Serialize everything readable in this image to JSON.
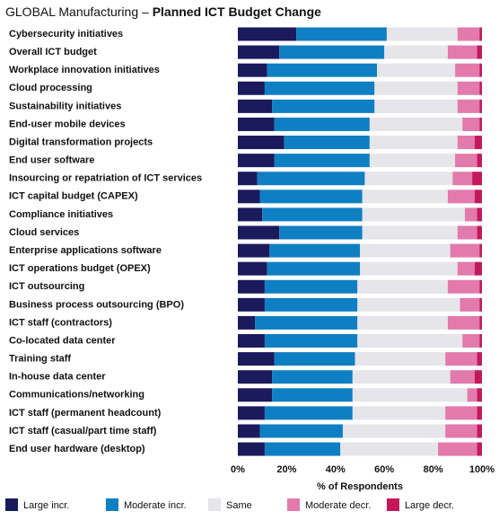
{
  "chart_data": {
    "type": "stacked-bar-horizontal",
    "title": {
      "region": "GLOBAL Manufacturing –",
      "topic": "Planned ICT Budget Change"
    },
    "x_label": "% of Respondents",
    "categories": [
      "Cybersecurity initiatives",
      "Overall ICT budget",
      "Workplace innovation initiatives",
      "Cloud processing",
      "Sustainability initiatives",
      "End-user mobile devices",
      "Digital transformation projects",
      "End user software",
      "Insourcing or repatriation of ICT services",
      "ICT capital budget (CAPEX)",
      "Compliance initiatives",
      "Cloud services",
      "Enterprise applications software",
      "ICT operations budget (OPEX)",
      "ICT outsourcing",
      "Business process outsourcing (BPO)",
      "ICT staff (contractors)",
      "Co-located data center",
      "Training staff",
      "In-house data center",
      "Communications/networking",
      "ICT staff (permanent headcount)",
      "ICT staff (casual/part time staff)",
      "End user hardware (desktop)"
    ],
    "series": [
      {
        "name": "Large incr.",
        "color": "#1b1a5c",
        "values": [
          24,
          17,
          12,
          11,
          14,
          15,
          19,
          15,
          8,
          9,
          10,
          17,
          13,
          12,
          11,
          11,
          7,
          11,
          15,
          14,
          14,
          11,
          9,
          11
        ]
      },
      {
        "name": "Moderate incr.",
        "color": "#0f7fc3",
        "values": [
          37,
          43,
          45,
          45,
          42,
          39,
          35,
          39,
          44,
          42,
          41,
          34,
          37,
          38,
          38,
          38,
          42,
          38,
          33,
          33,
          33,
          36,
          34,
          31
        ]
      },
      {
        "name": "Same",
        "color": "#e5e5ea",
        "values": [
          29,
          26,
          32,
          34,
          34,
          38,
          36,
          35,
          36,
          35,
          42,
          39,
          37,
          40,
          37,
          42,
          37,
          43,
          37,
          40,
          47,
          38,
          42,
          40
        ]
      },
      {
        "name": "Moderate decr.",
        "color": "#e27aac",
        "values": [
          9,
          12,
          10,
          9,
          9,
          7,
          7,
          9,
          8,
          11,
          5,
          8,
          12,
          7,
          13,
          8,
          13,
          7,
          13,
          10,
          4,
          13,
          13,
          16
        ]
      },
      {
        "name": "Large decr.",
        "color": "#c3195c",
        "values": [
          1,
          2,
          1,
          1,
          1,
          1,
          3,
          2,
          4,
          3,
          2,
          2,
          1,
          3,
          1,
          1,
          1,
          1,
          2,
          3,
          2,
          2,
          2,
          2
        ]
      }
    ],
    "xlim": [
      0,
      100
    ],
    "xticks": [
      {
        "value": 0,
        "label": "0%"
      },
      {
        "value": 20,
        "label": "20%"
      },
      {
        "value": 40,
        "label": "40%"
      },
      {
        "value": 60,
        "label": "60%"
      },
      {
        "value": 80,
        "label": "80%"
      },
      {
        "value": 100,
        "label": "100%"
      }
    ],
    "legend": "bottom"
  }
}
